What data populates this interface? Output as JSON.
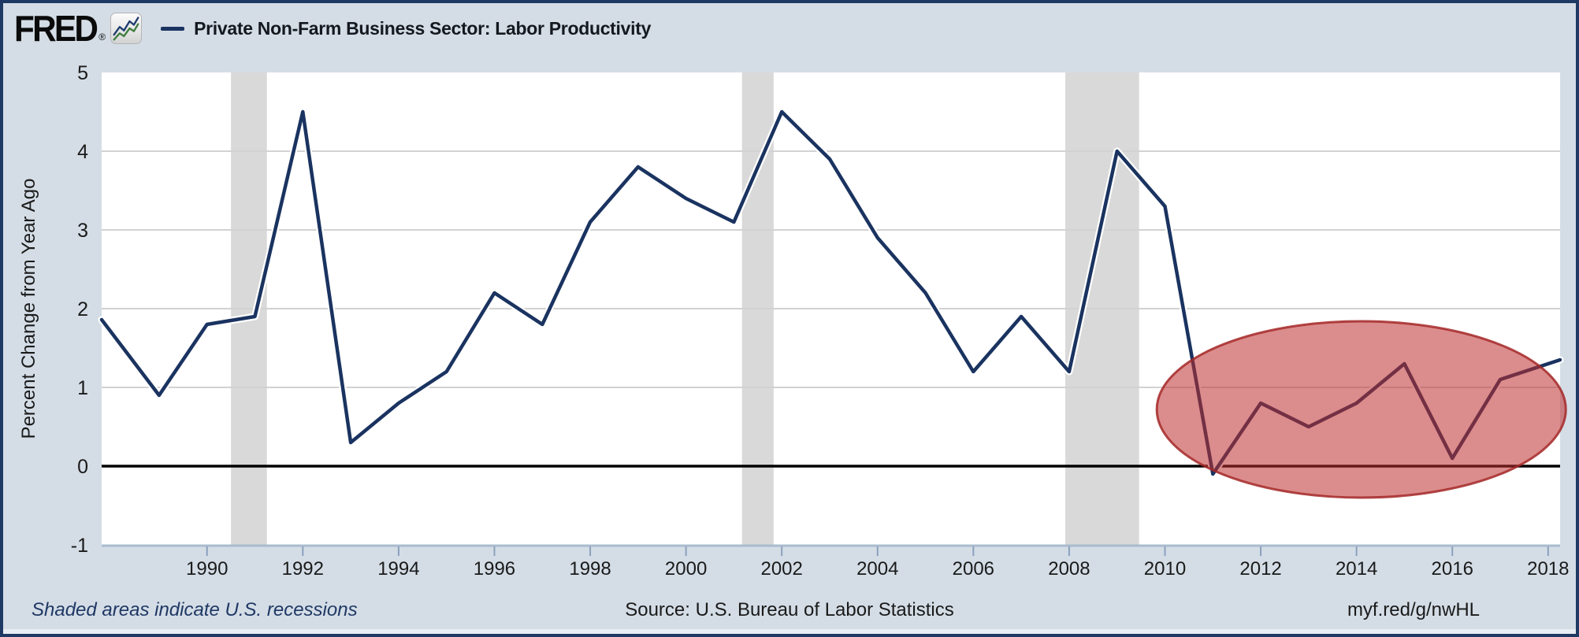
{
  "header": {
    "logo_text": "FRED",
    "logo_registered": "®",
    "series_title": "Private Non-Farm Business Sector: Labor Productivity"
  },
  "footer": {
    "note": "Shaded areas indicate U.S. recessions",
    "source": "Source: U.S. Bureau of Labor Statistics",
    "link": "myf.red/g/nwHL"
  },
  "colors": {
    "background": "#d4dde6",
    "frame_border": "#1e3a64",
    "plot_bg": "#ffffff",
    "gridline": "#d2d2d2",
    "zero_line": "#000000",
    "recession_band": "#d9d9d9",
    "series_line": "#1a3360",
    "series_casing": "#ffffff",
    "tick": "#8ba0bd",
    "axis_edge": "#a9bccf",
    "axis_text": "#1a1a1a",
    "ellipse_fill": "rgba(190,45,45,0.55)",
    "ellipse_stroke": "rgba(165,40,40,0.85)",
    "logo_badge_line_navy": "#1f3c6d",
    "logo_badge_line_green": "#3e7d3e"
  },
  "chart_data": {
    "type": "line",
    "title": "Private Non-Farm Business Sector: Labor Productivity",
    "xlabel": "",
    "ylabel": "Percent Change from Year Ago",
    "x": [
      1988,
      1989,
      1990,
      1991,
      1992,
      1993,
      1994,
      1995,
      1996,
      1997,
      1998,
      1999,
      2000,
      2001,
      2002,
      2003,
      2004,
      2005,
      2006,
      2007,
      2008,
      2009,
      2010,
      2011,
      2012,
      2013,
      2014,
      2015,
      2016,
      2017,
      2018
    ],
    "values": [
      1.7,
      0.9,
      1.8,
      1.9,
      4.5,
      0.3,
      0.8,
      1.2,
      2.2,
      1.8,
      3.1,
      3.8,
      3.4,
      3.1,
      4.5,
      3.9,
      2.9,
      2.2,
      1.2,
      1.9,
      1.2,
      4.0,
      3.3,
      -0.1,
      0.8,
      0.5,
      0.8,
      1.3,
      0.1,
      1.1,
      1.3
    ],
    "xlim": [
      1987.8,
      2018.25
    ],
    "ylim": [
      -1,
      5
    ],
    "xticks": [
      1990,
      1992,
      1994,
      1996,
      1998,
      2000,
      2002,
      2004,
      2006,
      2008,
      2010,
      2012,
      2014,
      2016,
      2018
    ],
    "yticks": [
      -1,
      0,
      1,
      2,
      3,
      4,
      5
    ],
    "grid_y": [
      1,
      2,
      3,
      4
    ],
    "grid": true,
    "legend_position": "top-header",
    "recessions": [
      {
        "start": 1990.5,
        "end": 1991.25
      },
      {
        "start": 2001.17,
        "end": 2001.83
      },
      {
        "start": 2007.92,
        "end": 2009.46
      }
    ],
    "annotation_ellipse": {
      "shape": "ellipse",
      "x_center": 2014.1,
      "y_center": 0.72,
      "x_radius_years": 4.27,
      "y_radius_units": 1.12
    }
  }
}
